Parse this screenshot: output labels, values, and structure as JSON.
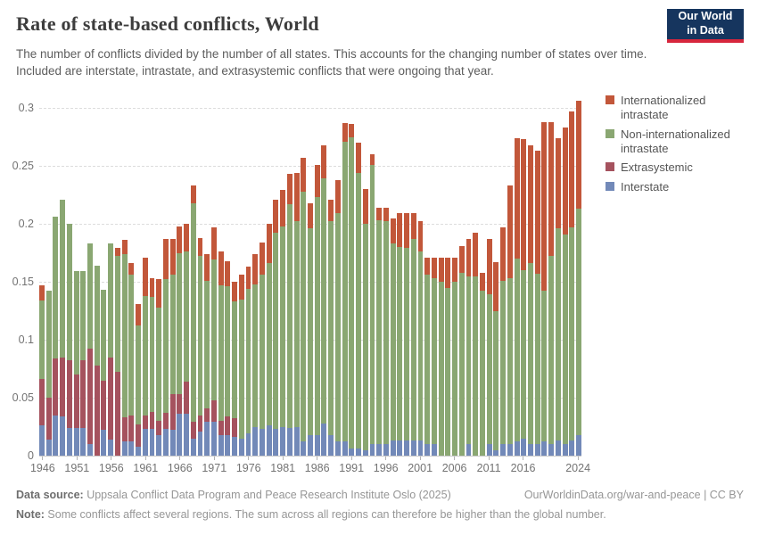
{
  "header": {
    "title": "Rate of state-based conflicts, World",
    "subtitle": "The number of conflicts divided by the number of all states. This accounts for the changing number of states over time. Included are interstate, intrastate, and extrasystemic conflicts that were ongoing that year."
  },
  "logo": {
    "line1": "Our World",
    "line2": "in Data"
  },
  "legend": {
    "items": [
      {
        "label": "Internationalized intrastate",
        "color": "#c2573a"
      },
      {
        "label": "Non-internationalized intrastate",
        "color": "#8aa772"
      },
      {
        "label": "Extrasystemic",
        "color": "#a5525e"
      },
      {
        "label": "Interstate",
        "color": "#7289b8"
      }
    ]
  },
  "axes": {
    "y_tick_labels": [
      "0",
      "0.05",
      "0.1",
      "0.15",
      "0.2",
      "0.25",
      "0.3"
    ],
    "x_tick_labels": [
      "1946",
      "1951",
      "1956",
      "1961",
      "1966",
      "1971",
      "1976",
      "1981",
      "1986",
      "1991",
      "1996",
      "2001",
      "2006",
      "2011",
      "2016",
      "2024"
    ]
  },
  "chart_data": {
    "type": "bar",
    "stacked": true,
    "title": "Rate of state-based conflicts, World",
    "xlabel": "",
    "ylabel": "",
    "ylim": [
      0,
      0.309
    ],
    "grid": "horizontal-dashed",
    "legend_position": "right-top",
    "y_ticks": [
      0,
      0.05,
      0.1,
      0.15,
      0.2,
      0.25,
      0.3
    ],
    "x": [
      1946,
      1947,
      1948,
      1949,
      1950,
      1951,
      1952,
      1953,
      1954,
      1955,
      1956,
      1957,
      1958,
      1959,
      1960,
      1961,
      1962,
      1963,
      1964,
      1965,
      1966,
      1967,
      1968,
      1969,
      1970,
      1971,
      1972,
      1973,
      1974,
      1975,
      1976,
      1977,
      1978,
      1979,
      1980,
      1981,
      1982,
      1983,
      1984,
      1985,
      1986,
      1987,
      1988,
      1989,
      1990,
      1991,
      1992,
      1993,
      1994,
      1995,
      1996,
      1997,
      1998,
      1999,
      2000,
      2001,
      2002,
      2003,
      2004,
      2005,
      2006,
      2007,
      2008,
      2009,
      2010,
      2011,
      2012,
      2013,
      2014,
      2015,
      2016,
      2017,
      2018,
      2019,
      2020,
      2021,
      2022,
      2023,
      2024
    ],
    "series": [
      {
        "name": "Interstate",
        "color": "#7289b8",
        "values": [
          0.026,
          0.014,
          0.035,
          0.034,
          0.024,
          0.024,
          0.024,
          0.01,
          0.0,
          0.022,
          0.014,
          0.0,
          0.012,
          0.012,
          0.008,
          0.023,
          0.023,
          0.018,
          0.023,
          0.022,
          0.036,
          0.036,
          0.015,
          0.021,
          0.029,
          0.029,
          0.018,
          0.018,
          0.016,
          0.015,
          0.019,
          0.025,
          0.023,
          0.026,
          0.023,
          0.025,
          0.024,
          0.025,
          0.012,
          0.018,
          0.018,
          0.028,
          0.018,
          0.012,
          0.012,
          0.006,
          0.006,
          0.005,
          0.01,
          0.01,
          0.01,
          0.013,
          0.013,
          0.013,
          0.013,
          0.013,
          0.01,
          0.01,
          0.0,
          0.0,
          0.0,
          0.0,
          0.01,
          0.0,
          0.0,
          0.01,
          0.005,
          0.01,
          0.01,
          0.012,
          0.015,
          0.01,
          0.01,
          0.012,
          0.01,
          0.013,
          0.01,
          0.013,
          0.018
        ]
      },
      {
        "name": "Extrasystemic",
        "color": "#a5525e",
        "values": [
          0.04,
          0.036,
          0.049,
          0.051,
          0.058,
          0.046,
          0.058,
          0.082,
          0.078,
          0.043,
          0.071,
          0.072,
          0.021,
          0.023,
          0.019,
          0.012,
          0.015,
          0.012,
          0.014,
          0.031,
          0.017,
          0.028,
          0.014,
          0.014,
          0.012,
          0.019,
          0.012,
          0.016,
          0.016,
          0.0,
          0,
          0,
          0,
          0,
          0,
          0,
          0,
          0,
          0,
          0,
          0,
          0,
          0,
          0,
          0,
          0,
          0,
          0,
          0,
          0,
          0,
          0,
          0,
          0,
          0,
          0,
          0,
          0,
          0,
          0,
          0,
          0,
          0,
          0,
          0,
          0,
          0,
          0,
          0,
          0,
          0,
          0,
          0,
          0,
          0,
          0,
          0,
          0,
          0
        ]
      },
      {
        "name": "Non-internationalized intrastate",
        "color": "#8aa772",
        "values": [
          0.068,
          0.092,
          0.122,
          0.136,
          0.118,
          0.089,
          0.077,
          0.091,
          0.086,
          0.078,
          0.098,
          0.1,
          0.141,
          0.121,
          0.085,
          0.103,
          0.099,
          0.098,
          0.115,
          0.103,
          0.122,
          0.112,
          0.189,
          0.137,
          0.11,
          0.121,
          0.117,
          0.112,
          0.101,
          0.12,
          0.125,
          0.123,
          0.133,
          0.14,
          0.169,
          0.173,
          0.193,
          0.177,
          0.216,
          0.178,
          0.205,
          0.211,
          0.184,
          0.197,
          0.259,
          0.269,
          0.238,
          0.195,
          0.241,
          0.193,
          0.192,
          0.17,
          0.167,
          0.166,
          0.174,
          0.163,
          0.146,
          0.143,
          0.15,
          0.145,
          0.15,
          0.158,
          0.145,
          0.155,
          0.142,
          0.129,
          0.12,
          0.141,
          0.143,
          0.158,
          0.145,
          0.156,
          0.147,
          0.13,
          0.162,
          0.183,
          0.181,
          0.184,
          0.195
        ]
      },
      {
        "name": "Internationalized intrastate",
        "color": "#c2573a",
        "values": [
          0.013,
          0,
          0,
          0,
          0,
          0,
          0,
          0,
          0,
          0,
          0,
          0.007,
          0.012,
          0.01,
          0.019,
          0.033,
          0.016,
          0.024,
          0.035,
          0.031,
          0.023,
          0.024,
          0.015,
          0.016,
          0.023,
          0.028,
          0.029,
          0.022,
          0.017,
          0.021,
          0.019,
          0.026,
          0.028,
          0.034,
          0.029,
          0.031,
          0.026,
          0.042,
          0.029,
          0.022,
          0.028,
          0.029,
          0.019,
          0.029,
          0.016,
          0.011,
          0.026,
          0.03,
          0.009,
          0.011,
          0.012,
          0.022,
          0.029,
          0.03,
          0.022,
          0.026,
          0.015,
          0.018,
          0.021,
          0.026,
          0.021,
          0.023,
          0.032,
          0.037,
          0.016,
          0.048,
          0.042,
          0.046,
          0.08,
          0.104,
          0.113,
          0.102,
          0.106,
          0.146,
          0.116,
          0.078,
          0.092,
          0.1,
          0.093
        ]
      }
    ]
  },
  "footer": {
    "data_source_label": "Data source:",
    "data_source_text": " Uppsala Conflict Data Program and Peace Research Institute Oslo (2025)",
    "link": "OurWorldinData.org/war-and-peace | CC BY",
    "note_label": "Note:",
    "note_text": " Some conflicts affect several regions. The sum across all regions can therefore be higher than the global number."
  }
}
